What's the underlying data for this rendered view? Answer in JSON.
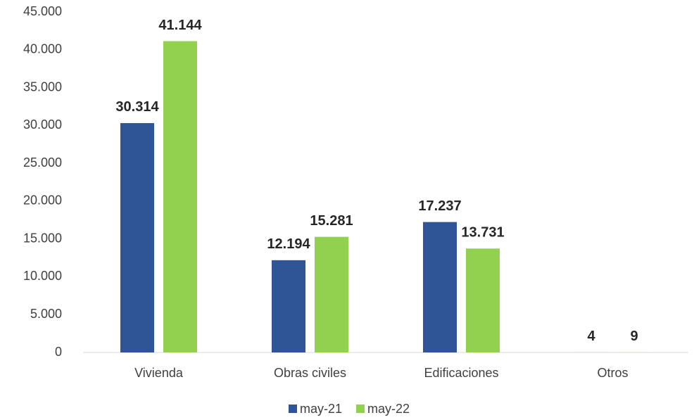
{
  "chart_data": {
    "type": "bar",
    "categories": [
      "Vivienda",
      "Obras civiles",
      "Edificaciones",
      "Otros"
    ],
    "series": [
      {
        "name": "may-21",
        "color": "#2f5597",
        "values": [
          30314,
          12194,
          17237,
          4
        ],
        "value_labels": [
          "30.314",
          "12.194",
          "17.237",
          "4"
        ]
      },
      {
        "name": "may-22",
        "color": "#92d050",
        "values": [
          41144,
          15281,
          13731,
          9
        ],
        "value_labels": [
          "41.144",
          "15.281",
          "13.731",
          "9"
        ]
      }
    ],
    "ylim": [
      0,
      45000
    ],
    "yticks": [
      0,
      {
        "value": 5000,
        "label": "5.000"
      },
      {
        "value": 10000,
        "label": "10.000"
      },
      {
        "value": 15000,
        "label": "15.000"
      },
      {
        "value": 20000,
        "label": "20.000"
      },
      {
        "value": 25000,
        "label": "25.000"
      },
      {
        "value": 30000,
        "label": "30.000"
      },
      {
        "value": 35000,
        "label": "35.000"
      },
      {
        "value": 40000,
        "label": "40.000"
      },
      {
        "value": 45000,
        "label": "45.000"
      }
    ],
    "grid": false,
    "legend": "bottom"
  }
}
